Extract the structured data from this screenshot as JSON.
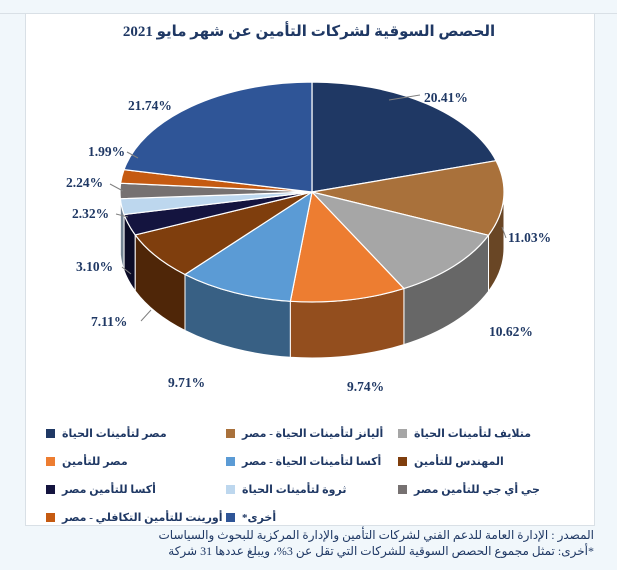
{
  "title": "الحصص السوقية لشركات التأمين عن شهر مايو 2021",
  "chart_data": {
    "type": "pie",
    "style": "3d",
    "title": "الحصص السوقية لشركات التأمين عن شهر مايو 2021",
    "value_unit": "%",
    "start_angle_deg": 0,
    "direction": "clockwise",
    "legend_position": "bottom",
    "slices": [
      {
        "label": "مصر لتأمينات الحياة",
        "value": 20.41,
        "color": "#1F3864"
      },
      {
        "label": "أليانز لتأمينات الحياة - مصر",
        "value": 11.03,
        "color": "#A9713B"
      },
      {
        "label": "متلايف لتأمينات الحياة",
        "value": 10.62,
        "color": "#A6A6A6"
      },
      {
        "label": "مصر للتأمين",
        "value": 9.74,
        "color": "#ED7D31"
      },
      {
        "label": "أكسا لتأمينات الحياة - مصر",
        "value": 9.71,
        "color": "#5B9BD5"
      },
      {
        "label": "المهندس للتأمين",
        "value": 7.11,
        "color": "#7F3E0D"
      },
      {
        "label": "أكسا للتأمين مصر",
        "value": 3.1,
        "color": "#14143F"
      },
      {
        "label": "ثروة لتأمينات الحياة",
        "value": 2.32,
        "color": "#BDD7EE"
      },
      {
        "label": "جي أي جي للتأمين مصر",
        "value": 2.24,
        "color": "#767171"
      },
      {
        "label": "أورينت للتأمين التكافلي - مصر",
        "value": 1.99,
        "color": "#C55A11"
      },
      {
        "label": "أخرى*",
        "value": 21.74,
        "color": "#2F5597"
      }
    ]
  },
  "footer": {
    "source_line": "المصدر : الإدارة العامة للدعم الفني لشركات التأمين والإدارة المركزية للبحوث والسياسات",
    "note_line": "*أخرى: تمثل مجموع الحصص السوقية للشركات التي تقل عن 3%، ويبلغ عددها 31 شركة"
  },
  "colors": {
    "text": "#1F3864",
    "background": "#F1F7FB",
    "panel": "#FFFFFF",
    "leader_line": "#808080"
  }
}
